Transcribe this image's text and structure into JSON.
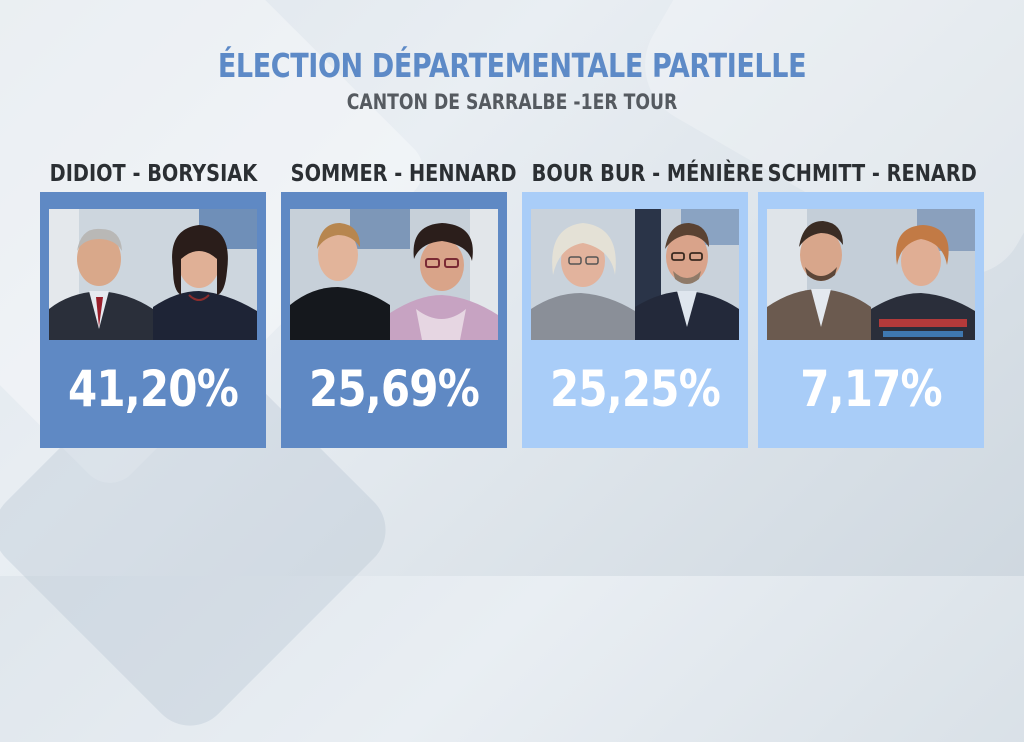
{
  "header": {
    "title": "ÉLECTION DÉPARTEMENTALE PARTIELLE",
    "subtitle": "CANTON DE SARRALBE -1ER TOUR"
  },
  "candidates": [
    {
      "name": "DIDIOT - BORYSIAK",
      "percentage": "41,20%",
      "card_color": "#5f89c4",
      "photo": "candidate-pair-photo"
    },
    {
      "name": "SOMMER - HENNARD",
      "percentage": "25,69%",
      "card_color": "#5f89c4",
      "photo": "candidate-pair-photo"
    },
    {
      "name": "BOUR BUR - MÉNIÈRE",
      "percentage": "25,25%",
      "card_color": "#a9cdf8",
      "photo": "candidate-pair-photo"
    },
    {
      "name": "SCHMITT - RENARD",
      "percentage": "7,17%",
      "card_color": "#a9cdf8",
      "photo": "candidate-pair-photo"
    }
  ],
  "colors": {
    "title": "#5d8ac7",
    "subtitle": "#555a60",
    "name": "#2b2f33",
    "card_dark": "#5f89c4",
    "card_light": "#a9cdf8"
  }
}
